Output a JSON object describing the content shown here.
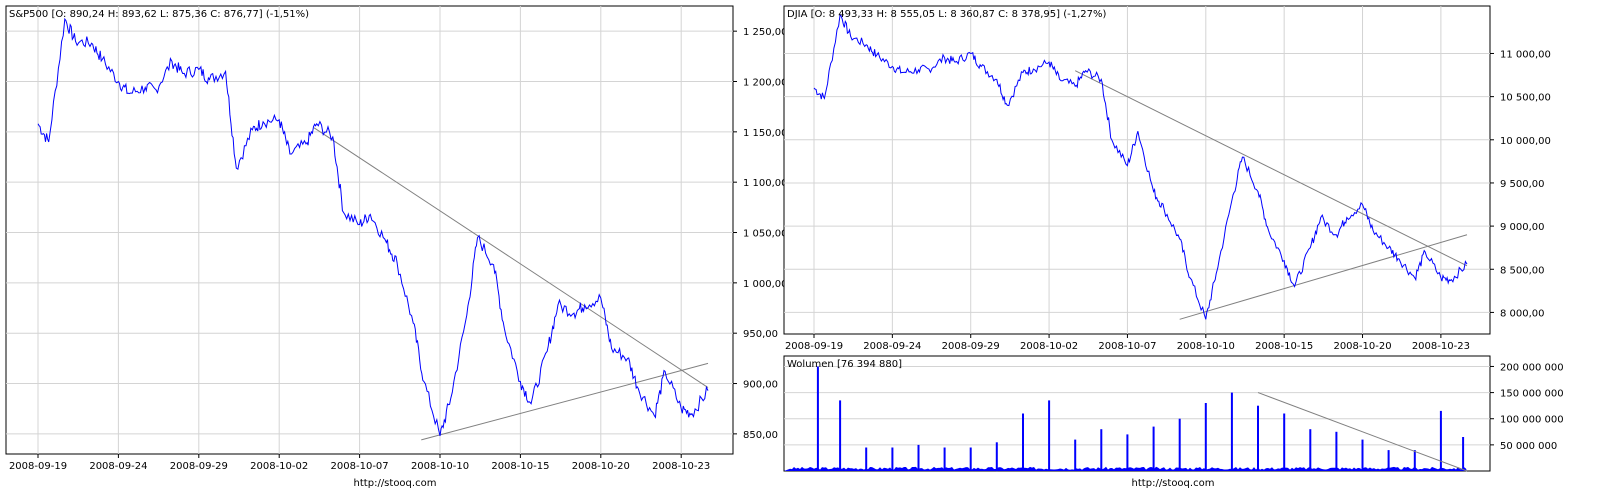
{
  "footer": {
    "left_url": "http://stooq.com",
    "right_url": "http://stooq.com"
  },
  "colors": {
    "series": "#0000ff",
    "trendline": "#808080",
    "grid": "#d4d4d4",
    "frame": "#000000",
    "text": "#000000"
  },
  "chart_data": [
    {
      "type": "line",
      "title": "S&P500 [O: 890,24  H: 893,62  L: 875,36  C: 876,77] (-1,51%)",
      "xlabel": "",
      "ylabel": "",
      "ylim": [
        830,
        1275
      ],
      "x_tick_labels": [
        "2008-09-19",
        "2008-09-24",
        "2008-09-29",
        "2008-10-02",
        "2008-10-07",
        "2008-10-10",
        "2008-10-15",
        "2008-10-20",
        "2008-10-23"
      ],
      "y_ticks": [
        850,
        900,
        950,
        1000,
        1050,
        1100,
        1150,
        1200,
        1250
      ],
      "y_tick_labels": [
        "850,00",
        "900,00",
        "950,00",
        "1 000,00",
        "1 050,00",
        "1 100,00",
        "1 150,00",
        "1 200,00",
        "1 250,00"
      ],
      "grid": true,
      "x": [
        0,
        0.4,
        1,
        1.4,
        2,
        2.4,
        3,
        3.4,
        4,
        4.4,
        5,
        5.4,
        6,
        6.4,
        7,
        7.4,
        8,
        8.4,
        9,
        9.4,
        10,
        10.4,
        11,
        11.4,
        12,
        12.4,
        13,
        13.4,
        14,
        14.4,
        15,
        15.4,
        16,
        16.4,
        17,
        17.4,
        18,
        18.4,
        19,
        19.4,
        20,
        20.4,
        21,
        21.4,
        22,
        22.4,
        23,
        23.4,
        24,
        24.4,
        25
      ],
      "series": [
        {
          "values": [
            1158,
            1140,
            1262,
            1240,
            1238,
            1222,
            1200,
            1188,
            1194,
            1192,
            1220,
            1208,
            1212,
            1202,
            1210,
            1114,
            1152,
            1160,
            1162,
            1128,
            1138,
            1158,
            1145,
            1070,
            1058,
            1068,
            1040,
            1020,
            960,
            902,
            848,
            885,
            968,
            1045,
            1018,
            955,
            902,
            880,
            932,
            978,
            970,
            978,
            985,
            935,
            925,
            895,
            868,
            912,
            875,
            870,
            893
          ]
        }
      ],
      "trendlines": [
        {
          "x": [
            10.3,
            25
          ],
          "y": [
            1154,
            896
          ]
        },
        {
          "x": [
            14.3,
            25
          ],
          "y": [
            844,
            920
          ]
        }
      ]
    },
    {
      "type": "line",
      "title": "DJIA [O: 8 493,33  H: 8 555,05  L: 8 360,87  C: 8 378,95] (-1,27%)",
      "xlabel": "",
      "ylabel": "",
      "ylim": [
        7750,
        11550
      ],
      "x_tick_labels": [
        "2008-09-19",
        "2008-09-24",
        "2008-09-29",
        "2008-10-02",
        "2008-10-07",
        "2008-10-10",
        "2008-10-15",
        "2008-10-20",
        "2008-10-23"
      ],
      "y_ticks": [
        8000,
        8500,
        9000,
        9500,
        10000,
        10500,
        11000
      ],
      "y_tick_labels": [
        "8 000,00",
        "8 500,00",
        "9 000,00",
        "9 500,00",
        "10 000,00",
        "10 500,00",
        "11 000,00"
      ],
      "grid": true,
      "x": [
        0,
        0.4,
        1,
        1.4,
        2,
        2.4,
        3,
        3.4,
        4,
        4.4,
        5,
        5.4,
        6,
        6.4,
        7,
        7.4,
        8,
        8.4,
        9,
        9.4,
        10,
        10.4,
        11,
        11.4,
        12,
        12.4,
        13,
        13.4,
        14,
        14.4,
        15,
        15.4,
        16,
        16.4,
        17,
        17.4,
        18,
        18.4,
        19,
        19.4,
        20,
        20.4,
        21,
        21.4,
        22,
        22.4,
        23,
        23.4,
        24,
        24.4,
        25
      ],
      "series": [
        {
          "values": [
            10600,
            10480,
            11450,
            11200,
            11100,
            10980,
            10850,
            10780,
            10810,
            10820,
            10950,
            10900,
            11000,
            10850,
            10700,
            10400,
            10780,
            10820,
            10900,
            10700,
            10620,
            10800,
            10700,
            10000,
            9700,
            10100,
            9400,
            9200,
            8850,
            8400,
            7920,
            8450,
            9300,
            9800,
            9400,
            8950,
            8600,
            8300,
            8750,
            9100,
            8900,
            9100,
            9250,
            8950,
            8750,
            8620,
            8400,
            8700,
            8400,
            8380,
            8560
          ]
        }
      ],
      "trendlines": [
        {
          "x": [
            10,
            25
          ],
          "y": [
            10800,
            8540
          ]
        },
        {
          "x": [
            14,
            25
          ],
          "y": [
            7920,
            8900
          ]
        }
      ]
    },
    {
      "type": "bar",
      "title": "Wolumen [76 394 880]",
      "xlabel": "",
      "ylabel": "",
      "ylim": [
        0,
        220000000
      ],
      "y_ticks": [
        50000000,
        100000000,
        150000000,
        200000000
      ],
      "y_tick_labels": [
        "50 000 000",
        "100 000 000",
        "150 000 000",
        "200 000 000"
      ],
      "grid": true,
      "x": [
        0.15,
        1,
        2,
        3,
        4,
        5,
        6,
        7,
        8,
        9,
        10,
        11,
        12,
        13,
        14,
        15,
        16,
        17,
        18,
        19,
        20,
        21,
        22,
        23,
        24,
        24.85
      ],
      "values": [
        200000000,
        135000000,
        45000000,
        45000000,
        50000000,
        45000000,
        45000000,
        55000000,
        110000000,
        135000000,
        60000000,
        80000000,
        70000000,
        85000000,
        100000000,
        130000000,
        150000000,
        125000000,
        110000000,
        80000000,
        75000000,
        60000000,
        40000000,
        40000000,
        115000000,
        65000000
      ],
      "trendlines": [
        {
          "x": [
            17,
            25
          ],
          "y": [
            150000000,
            0
          ]
        }
      ]
    }
  ]
}
